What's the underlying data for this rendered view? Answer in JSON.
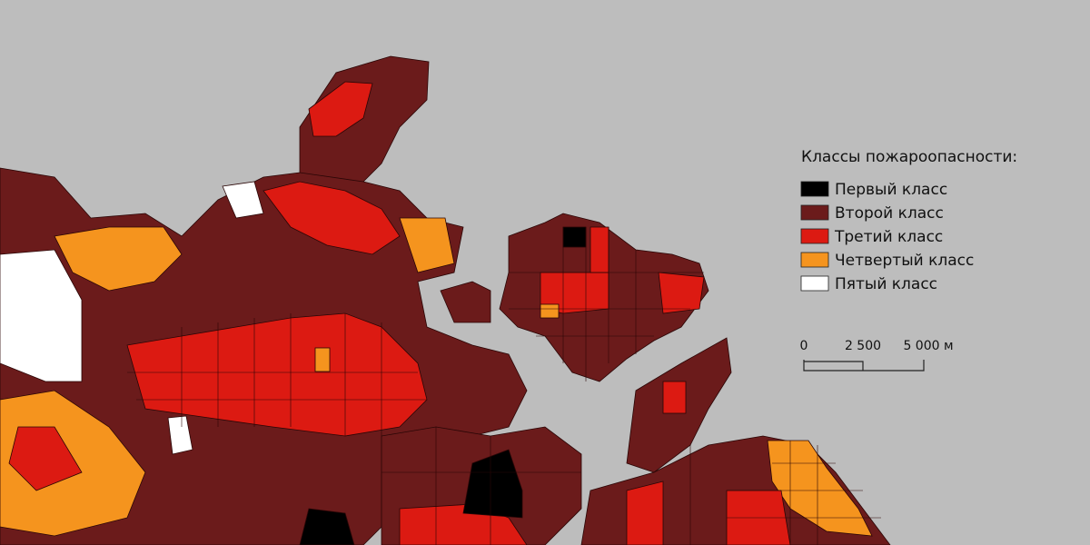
{
  "legend": {
    "title": "Классы пожароопасности:",
    "items": [
      {
        "label": "Первый класс",
        "color": "#000000"
      },
      {
        "label": "Второй класс",
        "color": "#6b1b1b"
      },
      {
        "label": "Третий класс",
        "color": "#dc1a12"
      },
      {
        "label": "Четвертый класс",
        "color": "#f5941e"
      },
      {
        "label": "Пятый класс",
        "color": "#ffffff"
      }
    ]
  },
  "scale_bar": {
    "labels": [
      "0",
      "2 500",
      "5 000 м"
    ]
  }
}
